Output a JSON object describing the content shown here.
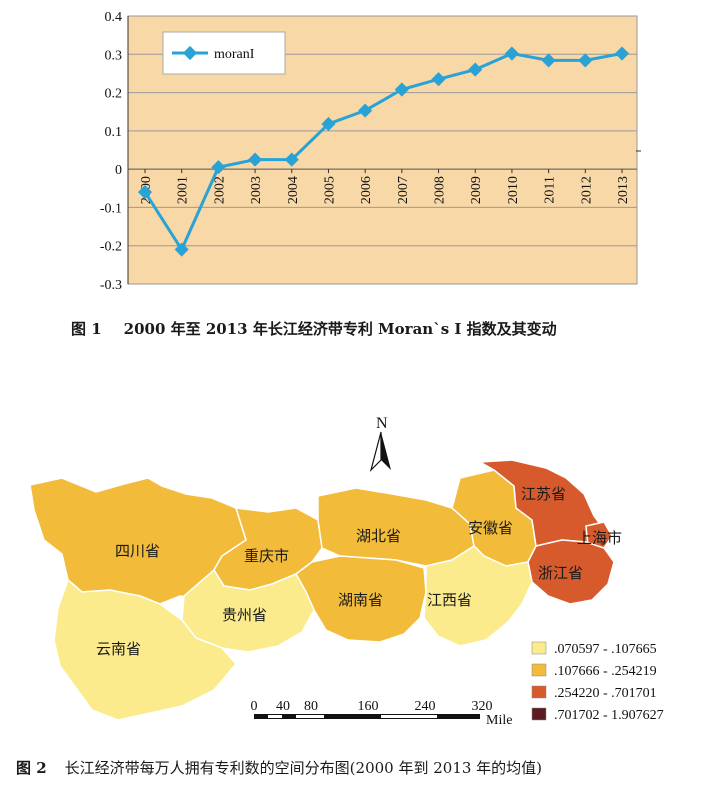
{
  "figure1": {
    "caption_number": "图 1",
    "caption_text": "2000 年至 2013 年长江经济带专利 Moran`s I 指数及其变动",
    "chart_data": {
      "type": "line",
      "x": [
        "2000",
        "2001",
        "2002",
        "2003",
        "2004",
        "2005",
        "2006",
        "2007",
        "2008",
        "2009",
        "2010",
        "2011",
        "2012",
        "2013"
      ],
      "series": [
        {
          "name": "moranI",
          "values": [
            -0.06,
            -0.21,
            0.005,
            0.025,
            0.025,
            0.118,
            0.153,
            0.208,
            0.235,
            0.26,
            0.302,
            0.284,
            0.284,
            0.302
          ]
        }
      ],
      "yticks": [
        "0.4",
        "0.3",
        "0.2",
        "0.1",
        "0",
        "-0.1",
        "-0.2",
        "-0.3"
      ],
      "ylim": [
        -0.3,
        0.4
      ],
      "grid": true,
      "legend": "top-left",
      "colors": {
        "line": "#29a3d6",
        "plot_bg": "#f8d8a6",
        "grid": "#9a9a9a"
      }
    }
  },
  "figure2": {
    "caption_number": "图 2",
    "caption_text": "长江经济带每万人拥有专利数的空间分布图(2000 年到 2013 年的均值)",
    "north_label": "N",
    "provinces": [
      {
        "name": "四川省",
        "color": "#f2bb3a"
      },
      {
        "name": "重庆市",
        "color": "#f2bb3a"
      },
      {
        "name": "湖北省",
        "color": "#f2bb3a"
      },
      {
        "name": "安徽省",
        "color": "#f2bb3a"
      },
      {
        "name": "江苏省",
        "color": "#d65a2c"
      },
      {
        "name": "上海市",
        "color": "#d65a2c"
      },
      {
        "name": "浙江省",
        "color": "#d65a2c"
      },
      {
        "name": "湖南省",
        "color": "#f2bb3a"
      },
      {
        "name": "江西省",
        "color": "#fbeb8c"
      },
      {
        "name": "贵州省",
        "color": "#fbeb8c"
      },
      {
        "name": "云南省",
        "color": "#fbeb8c"
      }
    ],
    "legend": [
      {
        "label": ".070597 - .107665",
        "color": "#fbeb8c"
      },
      {
        "label": ".107666 - .254219",
        "color": "#f2bb3a"
      },
      {
        "label": ".254220 - .701701",
        "color": "#d65a2c"
      },
      {
        "label": ".701702 - 1.907627",
        "color": "#5a1c20"
      }
    ],
    "scale": {
      "ticks": [
        "0",
        "40",
        "80",
        "160",
        "240",
        "320"
      ],
      "unit": "Mile"
    }
  }
}
